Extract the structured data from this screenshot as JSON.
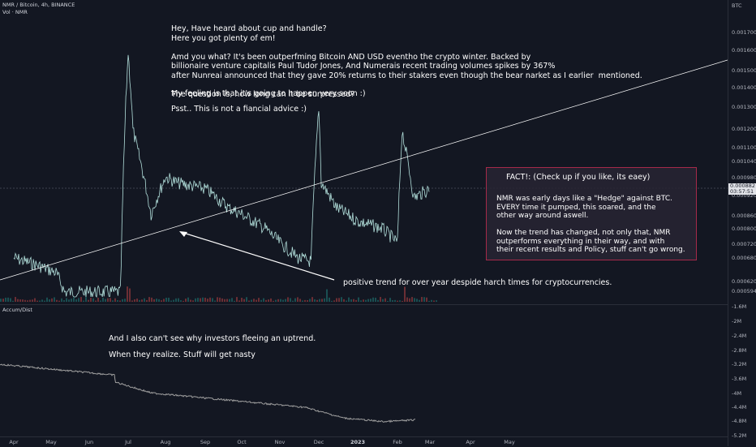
{
  "legend": {
    "symbol": "NMR / Bitcoin, 4h, BINANCE",
    "volume": "Vol · NMR",
    "indicator": "Accum/Dist"
  },
  "axis": {
    "unit": "BTC",
    "price_ticks": [
      "0.001700",
      "0.001600",
      "0.001500",
      "0.001400",
      "0.001300",
      "0.001200",
      "0.001100",
      "0.001040",
      "0.000980",
      "0.000920",
      "0.000860",
      "0.000800",
      "0.000720",
      "0.000680",
      "0.000620",
      "0.000594"
    ],
    "current_price": "0.000882",
    "countdown": "03:57:51",
    "ad_ticks": [
      "-1.6M",
      "-2M",
      "-2.4M",
      "-2.8M",
      "-3.2M",
      "-3.6M",
      "-4M",
      "-4.4M",
      "-4.8M",
      "-5.2M"
    ]
  },
  "time_axis": [
    "Apr",
    "May",
    "Jun",
    "Jul",
    "Aug",
    "Sep",
    "Oct",
    "Nov",
    "Dec",
    "2023",
    "Feb",
    "Mar",
    "Apr",
    "May"
  ],
  "notes": {
    "main_text": "Hey, Have heard about cup and handle?\nHere you got plenty of em!\n\nAmd you what? It's been outperfming Bitcoin AND USD eventho the crypto winter. Backed by\nbillionaire venture capitalis Paul Tudor Jones, And Numerais recent trading volumes spikes by 367%\nafter Nunreai announced that they gave 20% returns to their stakers even though the bear narket as I earlier  mentioned.\n\nThe question is, how long can it be surpressed?",
    "feeling": "My feeling is that it's going to happen very soon :)",
    "psst": "Psst.. This is not a fiancial advice :)",
    "trend": "positive trend for over year despide harch times for cryptocurrencies.",
    "investors": "And I also can't see why investors fleeing an uptrend.",
    "realize": "When they realize. Stuff will get nasty",
    "fact_title": "FACT!: (Check up if you like, its eaey)",
    "fact_text": "NMR was early days like a \"Hedge\" against BTC.\nEVERY time it pumped, this soared, and the\nother way around aswell.\n\nNow the trend has changed, not only that, NMR\noutperforms everything in their way, and with\ntheir recent results and Policy, stuff can't go wrong."
  },
  "colors": {
    "background": "#131722",
    "price_line": "#b2dfdb",
    "trend_line": "#ffffff",
    "ad_line": "#9e9e9e",
    "box_border": "#a52a4a"
  },
  "chart_data": {
    "type": "line",
    "title": "NMR / Bitcoin, 4h, BINANCE",
    "series": [
      {
        "name": "NMR/BTC",
        "x": [
          "2022-04-01",
          "2022-04-20",
          "2022-05-05",
          "2022-05-12",
          "2022-06-01",
          "2022-06-25",
          "2022-07-01",
          "2022-07-05",
          "2022-07-20",
          "2022-08-01",
          "2022-08-10",
          "2022-09-01",
          "2022-09-20",
          "2022-10-01",
          "2022-10-20",
          "2022-11-01",
          "2022-11-15",
          "2022-11-25",
          "2022-12-01",
          "2022-12-03",
          "2022-12-15",
          "2023-01-01",
          "2023-01-20",
          "2023-02-01",
          "2023-02-05",
          "2023-02-15",
          "2023-03-01"
        ],
        "values": [
          0.00068,
          0.00066,
          0.00064,
          0.00059,
          0.00057,
          0.00057,
          0.0015,
          0.0011,
          0.0008,
          0.00092,
          0.0009,
          0.00088,
          0.00082,
          0.0008,
          0.00076,
          0.00072,
          0.00068,
          0.00067,
          0.0012,
          0.0009,
          0.00082,
          0.00078,
          0.00076,
          0.00072,
          0.0011,
          0.00085,
          0.00088
        ]
      }
    ],
    "ad_series": {
      "name": "Accum/Dist",
      "x": [
        "2022-04-01",
        "2022-07-01",
        "2022-07-02",
        "2022-08-01",
        "2022-10-01",
        "2022-12-01",
        "2023-01-01",
        "2023-02-01",
        "2023-03-01"
      ],
      "values": [
        -3.3,
        -3.6,
        -3.8,
        -4.1,
        -4.3,
        -4.5,
        -4.8,
        -4.9,
        -4.85
      ]
    },
    "xlabel": "",
    "ylabel": "BTC",
    "ylim": [
      0.000594,
      0.00175
    ],
    "grid": false
  }
}
